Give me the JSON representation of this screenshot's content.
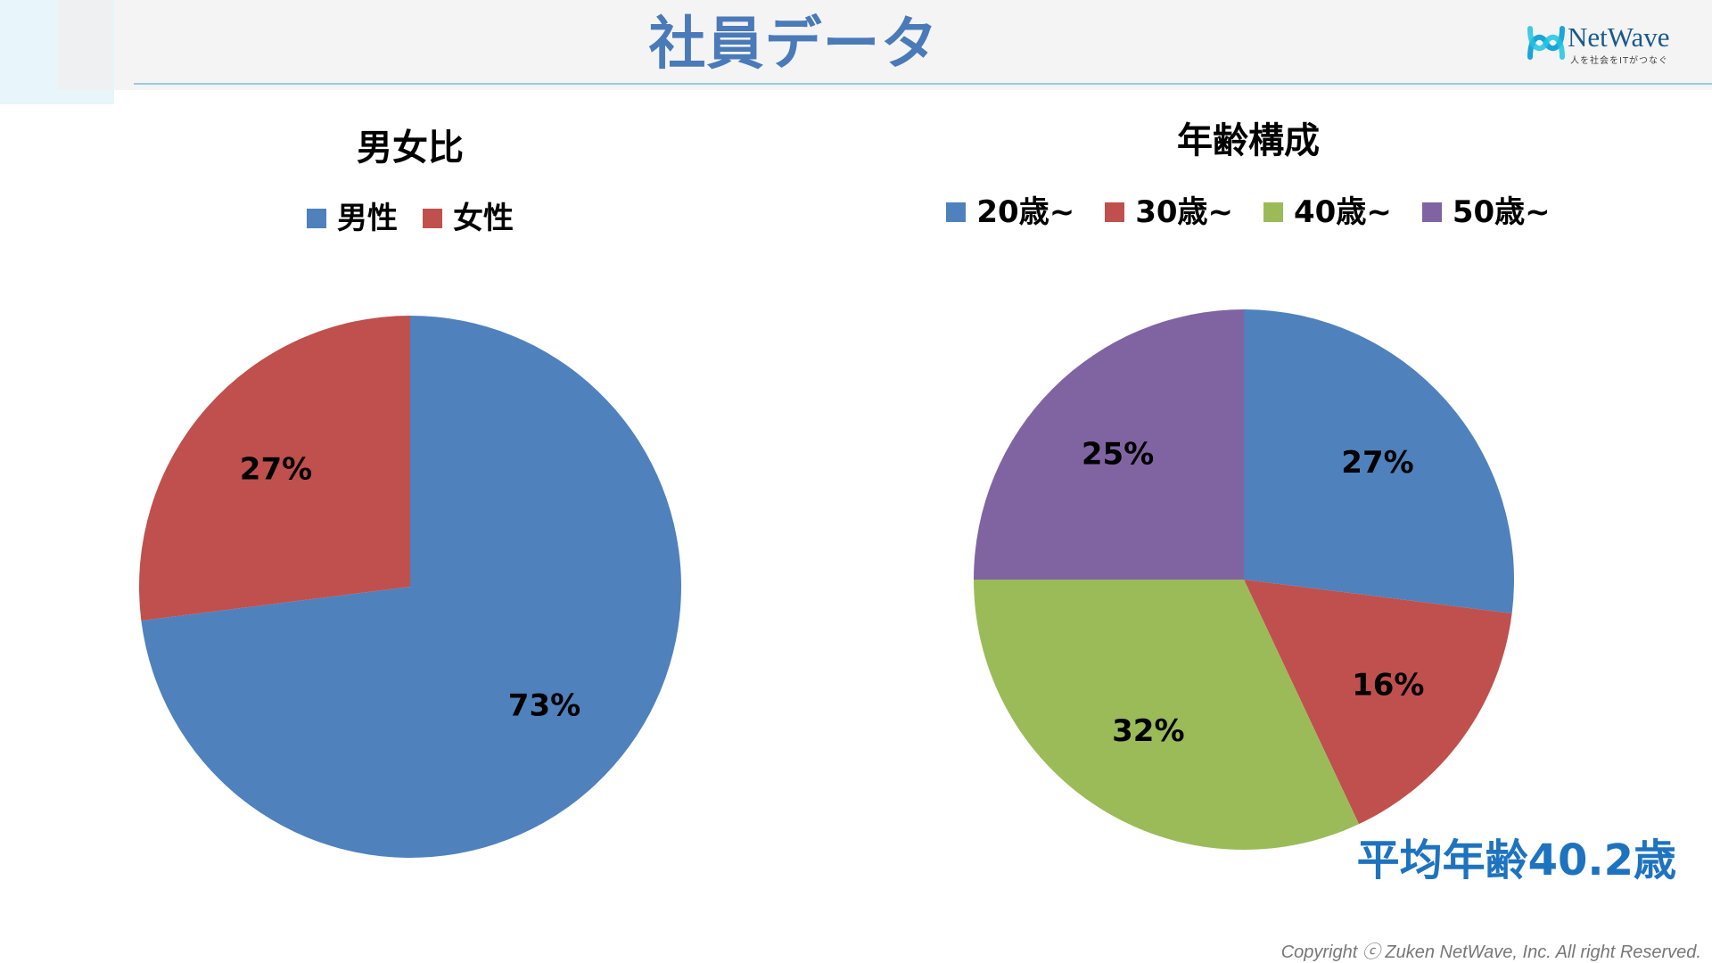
{
  "slide": {
    "title": "社員データ",
    "avg_age_note": "平均年齢40.2歳",
    "copyright": "Copyright ⓒ  Zuken NetWave, Inc. All right Reserved."
  },
  "logo": {
    "name": "NetWave",
    "tagline": "人を社会をITがつなぐ"
  },
  "colors": {
    "title": "#4a7ab8",
    "accent_note": "#1e73bf",
    "blue": "#4f81bd",
    "red": "#c0504d",
    "green": "#9bbb59",
    "purple": "#8064a2"
  },
  "chart_data": [
    {
      "type": "pie",
      "title": "男女比",
      "categories": [
        "男性",
        "女性"
      ],
      "values": [
        73,
        27
      ],
      "labels": [
        "73%",
        "27%"
      ],
      "colors": [
        "#4f81bd",
        "#c0504d"
      ],
      "legend": "top"
    },
    {
      "type": "pie",
      "title": "年齢構成",
      "categories": [
        "20歳~",
        "30歳~",
        "40歳~",
        "50歳~"
      ],
      "values": [
        27,
        16,
        32,
        25
      ],
      "labels": [
        "27%",
        "16%",
        "32%",
        "25%"
      ],
      "colors": [
        "#4f81bd",
        "#c0504d",
        "#9bbb59",
        "#8064a2"
      ],
      "legend": "top"
    }
  ]
}
